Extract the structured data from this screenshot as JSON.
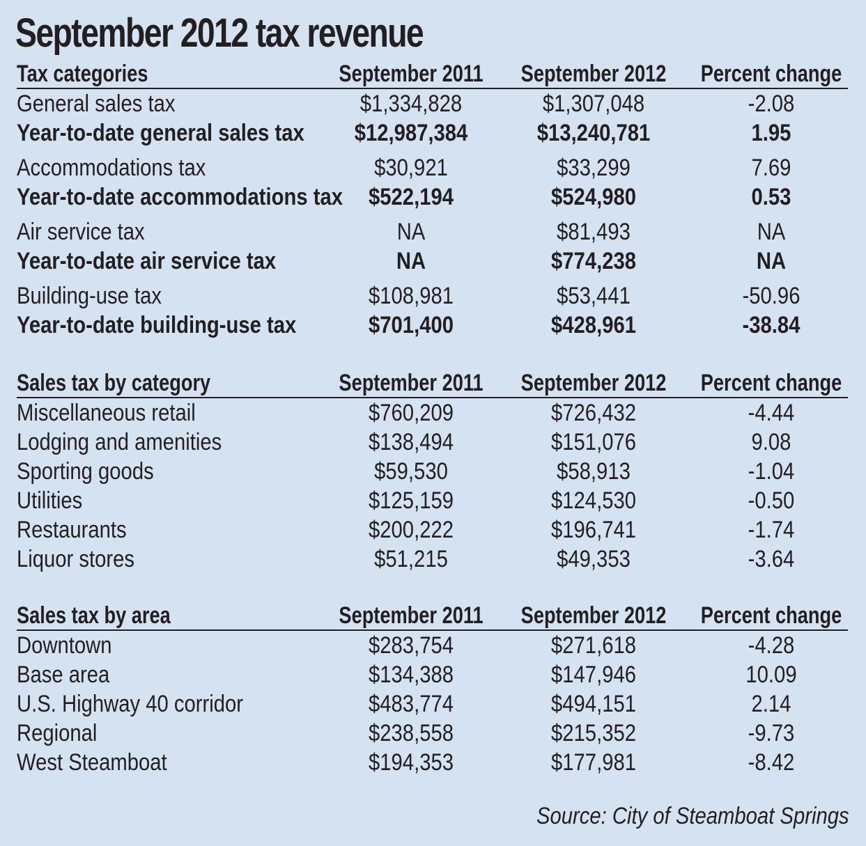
{
  "title": "September 2012 tax revenue",
  "sections": [
    {
      "header": [
        "Tax categories",
        "September 2011",
        "September 2012",
        "Percent change"
      ],
      "rows": [
        [
          "General sales tax",
          "$1,334,828",
          "$1,307,048",
          "-2.08"
        ],
        [
          "Year-to-date general sales tax",
          "$12,987,384",
          "$13,240,781",
          "1.95"
        ],
        [
          "Accommodations tax",
          "$30,921",
          "$33,299",
          "7.69"
        ],
        [
          "Year-to-date accommodations tax",
          "$522,194",
          "$524,980",
          "0.53"
        ],
        [
          "Air service tax",
          "NA",
          "$81,493",
          "NA"
        ],
        [
          "Year-to-date air service tax",
          "NA",
          "$774,238",
          "NA"
        ],
        [
          "Building-use tax",
          "$108,981",
          "$53,441",
          "-50.96"
        ],
        [
          "Year-to-date building-use tax",
          "$701,400",
          "$428,961",
          "-38.84"
        ]
      ]
    },
    {
      "header": [
        "Sales tax by category",
        "September 2011",
        "September 2012",
        "Percent change"
      ],
      "rows": [
        [
          "Miscellaneous retail",
          "$760,209",
          "$726,432",
          "-4.44"
        ],
        [
          "Lodging and amenities",
          "$138,494",
          "$151,076",
          "9.08"
        ],
        [
          "Sporting goods",
          "$59,530",
          "$58,913",
          "-1.04"
        ],
        [
          "Utilities",
          "$125,159",
          "$124,530",
          "-0.50"
        ],
        [
          "Restaurants",
          "$200,222",
          "$196,741",
          "-1.74"
        ],
        [
          "Liquor stores",
          "$51,215",
          "$49,353",
          "-3.64"
        ]
      ]
    },
    {
      "header": [
        "Sales tax by area",
        "September 2011",
        "September 2012",
        "Percent change"
      ],
      "rows": [
        [
          "Downtown",
          "$283,754",
          "$271,618",
          "-4.28"
        ],
        [
          "Base area",
          "$134,388",
          "$147,946",
          "10.09"
        ],
        [
          "U.S. Highway 40 corridor",
          "$483,774",
          "$494,151",
          "2.14"
        ],
        [
          "Regional",
          "$238,558",
          "$215,352",
          "-9.73"
        ],
        [
          "West Steamboat",
          "$194,353",
          "$177,981",
          "-8.42"
        ]
      ]
    }
  ],
  "source": "Source: City of Steamboat Springs",
  "colors": {
    "background": "#d5e2f2",
    "text": "#231f20"
  }
}
